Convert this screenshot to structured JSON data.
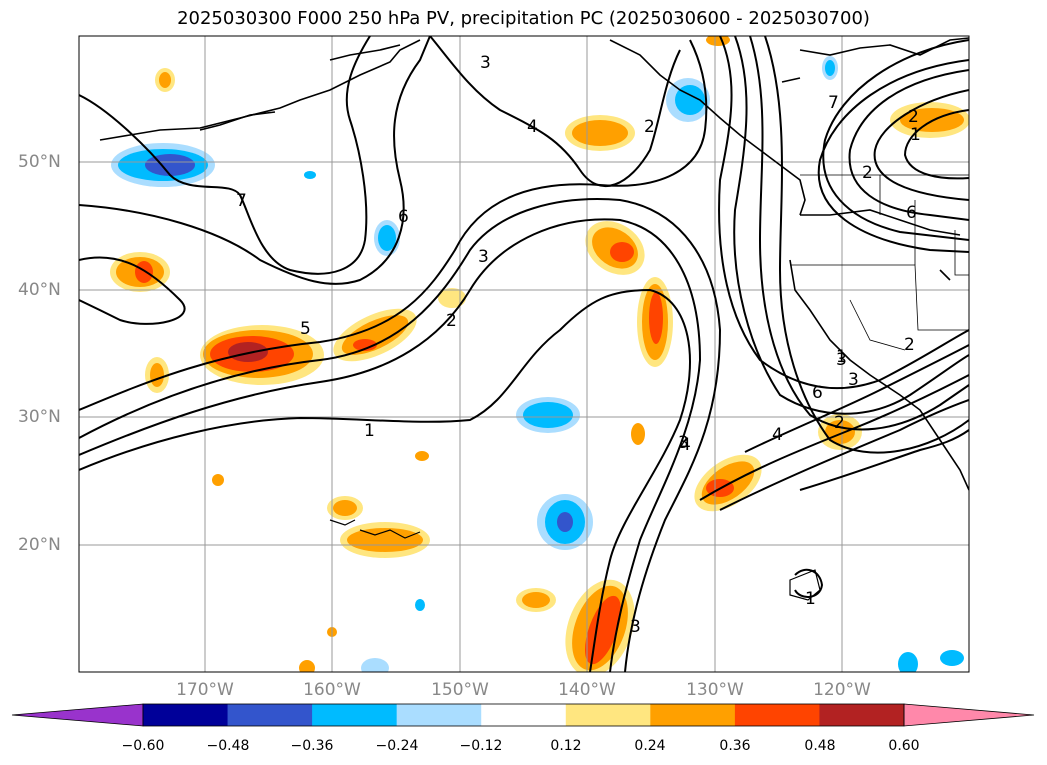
{
  "title": "2025030300 F000 250 hPa PV, precipitation PC (2025030600 - 2025030700)",
  "lat_labels": [
    "50°N",
    "40°N",
    "30°N",
    "20°N"
  ],
  "lon_labels": [
    "170°W",
    "160°W",
    "150°W",
    "140°W",
    "130°W",
    "120°W"
  ],
  "colorbar": {
    "ticks": [
      "−0.60",
      "−0.48",
      "−0.36",
      "−0.24",
      "−0.12",
      "0.12",
      "0.24",
      "0.36",
      "0.48",
      "0.60"
    ],
    "colors": [
      "#9933cc",
      "#000099",
      "#3355cc",
      "#00bbff",
      "#aaddff",
      "#ffffff",
      "#ffe680",
      "#ffa000",
      "#ff4400",
      "#b22222",
      "#ff88aa"
    ]
  },
  "contour_labels": [
    "1",
    "2",
    "3",
    "4",
    "5",
    "6",
    "7",
    "3",
    "4",
    "2",
    "6",
    "2",
    "3",
    "3",
    "4",
    "6",
    "3",
    "2",
    "2",
    "1",
    "7",
    "2",
    "1",
    "1",
    "3"
  ]
}
